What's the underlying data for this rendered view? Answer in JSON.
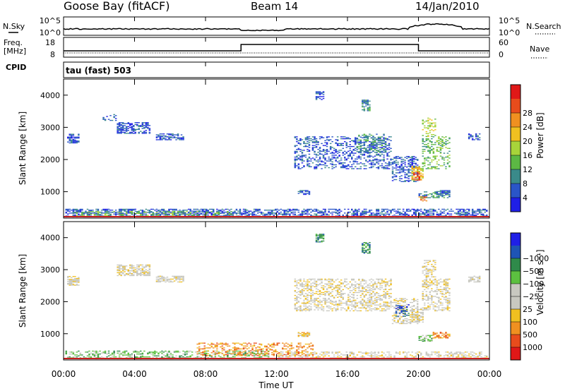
{
  "header": {
    "station": "Goose Bay (fitACF)",
    "beam": "Beam 14",
    "date": "14/Jan/2010"
  },
  "strips": {
    "nsky_label": "N.Sky",
    "nsearch_label": "N.Search",
    "nsky_ticks": [
      "10^5",
      "10^0"
    ],
    "nsearch_ticks": [
      "10^5",
      "10^0"
    ],
    "freq_label_1": "Freq.",
    "freq_label_2": "[MHz]",
    "freq_ticks": [
      "18",
      "8"
    ],
    "nave_label": "Nave",
    "nave_ticks": [
      "60",
      "0"
    ],
    "cpid_label": "CPID",
    "cpid_value": "tau (fast) 503"
  },
  "chart_data": [
    {
      "type": "heatmap",
      "name": "power",
      "xlabel": "Time UT",
      "ylabel": "Slant Range [km]",
      "x_ticks": [
        "00:00",
        "04:00",
        "08:00",
        "12:00",
        "16:00",
        "20:00",
        "00:00"
      ],
      "y_ticks": [
        1000,
        2000,
        3000,
        4000
      ],
      "ylim": [
        180,
        4500
      ],
      "colorbar": {
        "label": "Power [dB]",
        "ticks": [
          4,
          8,
          12,
          16,
          20,
          24,
          28
        ],
        "colors": [
          "#1f1fe6",
          "#2a55c8",
          "#3a8a8a",
          "#5cb844",
          "#a8d43a",
          "#f0c020",
          "#f09020",
          "#e84c1c",
          "#e01818"
        ]
      },
      "blobs": [
        {
          "t0": 0.1,
          "t1": 23.9,
          "r0": 200,
          "r1": 450,
          "c": 1,
          "d": 0.55
        },
        {
          "t0": 0.5,
          "t1": 9.5,
          "r0": 220,
          "r1": 380,
          "c": 3,
          "d": 0.35
        },
        {
          "t0": 0.2,
          "t1": 0.8,
          "r0": 2500,
          "r1": 2800,
          "c": 1,
          "d": 0.7
        },
        {
          "t0": 3.0,
          "t1": 4.8,
          "r0": 2800,
          "r1": 3150,
          "c": 1,
          "d": 0.6
        },
        {
          "t0": 5.2,
          "t1": 6.7,
          "r0": 2600,
          "r1": 2800,
          "c": 1,
          "d": 0.6
        },
        {
          "t0": 2.2,
          "t1": 3.0,
          "r0": 3200,
          "r1": 3400,
          "c": 1,
          "d": 0.25
        },
        {
          "t0": 13.2,
          "t1": 13.8,
          "r0": 900,
          "r1": 1050,
          "c": 1,
          "d": 0.75
        },
        {
          "t0": 14.2,
          "t1": 14.6,
          "r0": 3850,
          "r1": 4100,
          "c": 1,
          "d": 0.6
        },
        {
          "t0": 16.8,
          "t1": 17.3,
          "r0": 3500,
          "r1": 3850,
          "c": 2,
          "d": 0.6
        },
        {
          "t0": 13.0,
          "t1": 18.5,
          "r0": 1700,
          "r1": 2700,
          "c": 1,
          "d": 0.35
        },
        {
          "t0": 16.5,
          "t1": 18.2,
          "r0": 2200,
          "r1": 2800,
          "c": 2,
          "d": 0.35
        },
        {
          "t0": 18.5,
          "t1": 20.0,
          "r0": 1300,
          "r1": 2100,
          "c": 1,
          "d": 0.4
        },
        {
          "t0": 19.6,
          "t1": 20.3,
          "r0": 1350,
          "r1": 1800,
          "c": 5,
          "d": 0.6
        },
        {
          "t0": 19.7,
          "t1": 20.1,
          "r0": 1350,
          "r1": 1600,
          "c": 7,
          "d": 0.6
        },
        {
          "t0": 20.2,
          "t1": 21.8,
          "r0": 1700,
          "r1": 2700,
          "c": 3,
          "d": 0.35
        },
        {
          "t0": 20.2,
          "t1": 21.0,
          "r0": 2700,
          "r1": 3300,
          "c": 4,
          "d": 0.35
        },
        {
          "t0": 20.0,
          "t1": 21.8,
          "r0": 800,
          "r1": 1000,
          "c": 2,
          "d": 0.45
        },
        {
          "t0": 21.0,
          "t1": 21.8,
          "r0": 900,
          "r1": 1050,
          "c": 1,
          "d": 0.6
        },
        {
          "t0": 20.0,
          "t1": 20.5,
          "r0": 700,
          "r1": 850,
          "c": 6,
          "d": 0.5
        },
        {
          "t0": 22.8,
          "t1": 23.5,
          "r0": 2600,
          "r1": 2800,
          "c": 1,
          "d": 0.5
        }
      ]
    },
    {
      "type": "heatmap",
      "name": "velocity",
      "xlabel": "Time UT",
      "ylabel": "Slant Range [km]",
      "x_ticks": [
        "00:00",
        "04:00",
        "08:00",
        "12:00",
        "16:00",
        "20:00",
        "00:00"
      ],
      "y_ticks": [
        1000,
        2000,
        3000,
        4000
      ],
      "ylim": [
        180,
        4500
      ],
      "colorbar": {
        "label": "Velocity [m s⁻¹]",
        "ticks": [
          "1000",
          "500",
          "100",
          "25",
          "−25",
          "−100",
          "−500",
          "−1000"
        ],
        "colors": [
          "#e01818",
          "#e84c1c",
          "#f09020",
          "#f0c020",
          "#c8c8c0",
          "#c8c8c0",
          "#5cc040",
          "#2f8a4a",
          "#1e54b4",
          "#1f1fe6"
        ]
      },
      "blobs": [
        {
          "t0": 0.1,
          "t1": 11.5,
          "r0": 200,
          "r1": 450,
          "c": 6,
          "d": 0.4
        },
        {
          "t0": 7.5,
          "t1": 14.0,
          "r0": 300,
          "r1": 700,
          "c": 2,
          "d": 0.35
        },
        {
          "t0": 12.0,
          "t1": 23.9,
          "r0": 200,
          "r1": 420,
          "c": 4,
          "d": 0.35
        },
        {
          "t0": 0.2,
          "t1": 0.8,
          "r0": 2500,
          "r1": 2800,
          "c": 4,
          "d": 0.7
        },
        {
          "t0": 3.0,
          "t1": 4.8,
          "r0": 2800,
          "r1": 3150,
          "c": 4,
          "d": 0.6
        },
        {
          "t0": 5.2,
          "t1": 6.7,
          "r0": 2600,
          "r1": 2800,
          "c": 4,
          "d": 0.6
        },
        {
          "t0": 13.2,
          "t1": 13.8,
          "r0": 900,
          "r1": 1050,
          "c": 3,
          "d": 0.75
        },
        {
          "t0": 14.2,
          "t1": 14.6,
          "r0": 3850,
          "r1": 4100,
          "c": 7,
          "d": 0.6
        },
        {
          "t0": 16.8,
          "t1": 17.3,
          "r0": 3500,
          "r1": 3850,
          "c": 7,
          "d": 0.6
        },
        {
          "t0": 13.0,
          "t1": 18.5,
          "r0": 1700,
          "r1": 2700,
          "c": 4,
          "d": 0.4
        },
        {
          "t0": 18.5,
          "t1": 20.0,
          "r0": 1300,
          "r1": 2100,
          "c": 4,
          "d": 0.4
        },
        {
          "t0": 18.7,
          "t1": 19.5,
          "r0": 1500,
          "r1": 1900,
          "c": 8,
          "d": 0.4
        },
        {
          "t0": 19.6,
          "t1": 20.3,
          "r0": 1350,
          "r1": 1800,
          "c": 4,
          "d": 0.6
        },
        {
          "t0": 20.2,
          "t1": 21.8,
          "r0": 1700,
          "r1": 2700,
          "c": 4,
          "d": 0.4
        },
        {
          "t0": 20.2,
          "t1": 21.0,
          "r0": 2700,
          "r1": 3300,
          "c": 4,
          "d": 0.35
        },
        {
          "t0": 20.0,
          "t1": 20.8,
          "r0": 750,
          "r1": 950,
          "c": 6,
          "d": 0.5
        },
        {
          "t0": 20.8,
          "t1": 21.8,
          "r0": 850,
          "r1": 1050,
          "c": 2,
          "d": 0.6
        },
        {
          "t0": 22.8,
          "t1": 23.5,
          "r0": 2600,
          "r1": 2800,
          "c": 4,
          "d": 0.5
        }
      ]
    }
  ]
}
